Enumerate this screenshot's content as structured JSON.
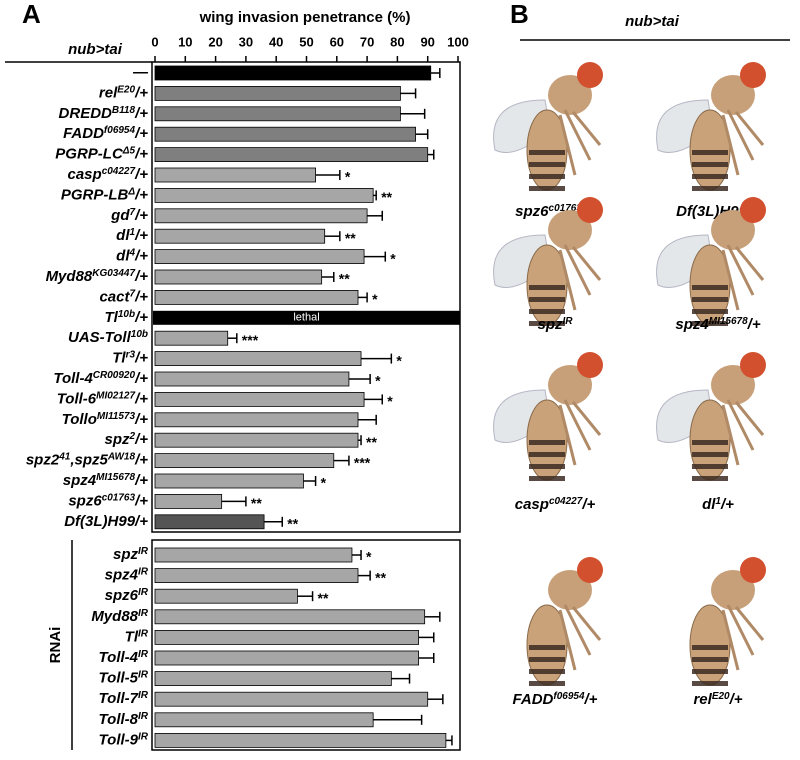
{
  "panel_labels": [
    "A",
    "B"
  ],
  "chart_data": [
    {
      "type": "bar",
      "orientation": "horizontal",
      "title": "wing invasion penetrance (%)",
      "column_header": "nub>tai",
      "xlim": [
        0,
        100
      ],
      "xticks": [
        0,
        10,
        20,
        30,
        40,
        50,
        60,
        70,
        80,
        90,
        100
      ],
      "categories": [
        {
          "name": "—"
        },
        {
          "name": "rel",
          "sup": "E20",
          "tail": "/+"
        },
        {
          "name": "DREDD",
          "sup": "B118",
          "tail": "/+"
        },
        {
          "name": "FADD",
          "sup": "f06954",
          "tail": "/+"
        },
        {
          "name": "PGRP-LC",
          "sup": "Δ5",
          "tail": "/+"
        },
        {
          "name": "casp",
          "sup": "c04227",
          "tail": "/+"
        },
        {
          "name": "PGRP-LB",
          "sup": "Δ",
          "tail": "/+"
        },
        {
          "name": "gd",
          "sup": "7",
          "tail": "/+"
        },
        {
          "name": "dl",
          "sup": "1",
          "tail": "/+"
        },
        {
          "name": "dl",
          "sup": "4",
          "tail": "/+"
        },
        {
          "name": "Myd88",
          "sup": "KG03447",
          "tail": "/+"
        },
        {
          "name": "cact",
          "sup": "7",
          "tail": "/+"
        },
        {
          "name": "Tl",
          "sup": "10b",
          "tail": "/+"
        },
        {
          "name": "UAS-Toll",
          "sup": "10b"
        },
        {
          "name": "Tl",
          "sup": "r3",
          "tail": "/+"
        },
        {
          "name": "Toll-4",
          "sup": "CR00920",
          "tail": "/+"
        },
        {
          "name": "Toll-6",
          "sup": "MI02127",
          "tail": "/+"
        },
        {
          "name": "Tollo",
          "sup": "MI11573",
          "tail": "/+"
        },
        {
          "name": "spz",
          "sup": "2",
          "tail": "/+"
        },
        {
          "name": "spz2",
          "sup": "41",
          "tail": ",spz5",
          "sup2": "AW18",
          "tail2": "/+"
        },
        {
          "name": "spz4",
          "sup": "MI15678",
          "tail": "/+"
        },
        {
          "name": "spz6",
          "sup": "c01763",
          "tail": "/+"
        },
        {
          "name": "Df(3L)H99/+"
        }
      ],
      "values": [
        91,
        81,
        81,
        86,
        90,
        53,
        72,
        70,
        56,
        69,
        55,
        67,
        null,
        24,
        68,
        64,
        69,
        67,
        67,
        59,
        49,
        22,
        36
      ],
      "errors": [
        3,
        5,
        8,
        4,
        2,
        8,
        1,
        5,
        5,
        7,
        4,
        3,
        null,
        3,
        10,
        7,
        6,
        6,
        1,
        5,
        4,
        8,
        6
      ],
      "value_labels": [
        null,
        null,
        null,
        null,
        null,
        null,
        null,
        null,
        null,
        null,
        null,
        null,
        "lethal",
        null,
        null,
        null,
        null,
        null,
        null,
        null,
        null,
        null,
        null
      ],
      "significance": [
        null,
        null,
        null,
        null,
        null,
        "*",
        "**",
        null,
        "**",
        "*",
        "**",
        "*",
        null,
        "***",
        "*",
        "*",
        "*",
        null,
        "**",
        "***",
        "*",
        "**",
        "**"
      ],
      "colors": [
        "#000000",
        "#7f7f7f",
        "#7f7f7f",
        "#7f7f7f",
        "#7f7f7f",
        "#a6a6a6",
        "#a6a6a6",
        "#a6a6a6",
        "#a6a6a6",
        "#a6a6a6",
        "#a6a6a6",
        "#a6a6a6",
        "#000000",
        "#a6a6a6",
        "#a6a6a6",
        "#a6a6a6",
        "#a6a6a6",
        "#a6a6a6",
        "#a6a6a6",
        "#a6a6a6",
        "#a6a6a6",
        "#a6a6a6",
        "#555555"
      ]
    },
    {
      "type": "bar",
      "orientation": "horizontal",
      "group_label": "RNAi",
      "xlim": [
        0,
        100
      ],
      "categories": [
        {
          "name": "spz",
          "sup": "IR"
        },
        {
          "name": "spz4",
          "sup": "IR"
        },
        {
          "name": "spz6",
          "sup": "IR"
        },
        {
          "name": "Myd88",
          "sup": "IR"
        },
        {
          "name": "Tl",
          "sup": "IR"
        },
        {
          "name": "Toll-4",
          "sup": "IR"
        },
        {
          "name": "Toll-5",
          "sup": "IR"
        },
        {
          "name": "Toll-7",
          "sup": "IR"
        },
        {
          "name": "Toll-8",
          "sup": "IR"
        },
        {
          "name": "Toll-9",
          "sup": "IR"
        }
      ],
      "values": [
        65,
        67,
        47,
        89,
        87,
        87,
        78,
        90,
        72,
        96
      ],
      "errors": [
        3,
        4,
        5,
        5,
        5,
        5,
        6,
        5,
        16,
        2
      ],
      "significance": [
        "*",
        "**",
        "**",
        null,
        null,
        null,
        null,
        null,
        null,
        null
      ],
      "color": "#a6a6a6"
    }
  ],
  "panel_b": {
    "title": "nub>tai",
    "captions": [
      {
        "name": "spz6",
        "sup": "c01763",
        "tail": "/+"
      },
      {
        "name": "Df(3L)H99/+"
      },
      {
        "name": "spz",
        "sup": "IR"
      },
      {
        "name": "spz4",
        "sup": "MI15678",
        "tail": "/+"
      },
      {
        "name": "casp",
        "sup": "c04227",
        "tail": "/+"
      },
      {
        "name": "dl",
        "sup": "1",
        "tail": "/+"
      },
      {
        "name": "FADD",
        "sup": "f06954",
        "tail": "/+"
      },
      {
        "name": "rel",
        "sup": "E20",
        "tail": "/+"
      }
    ]
  }
}
